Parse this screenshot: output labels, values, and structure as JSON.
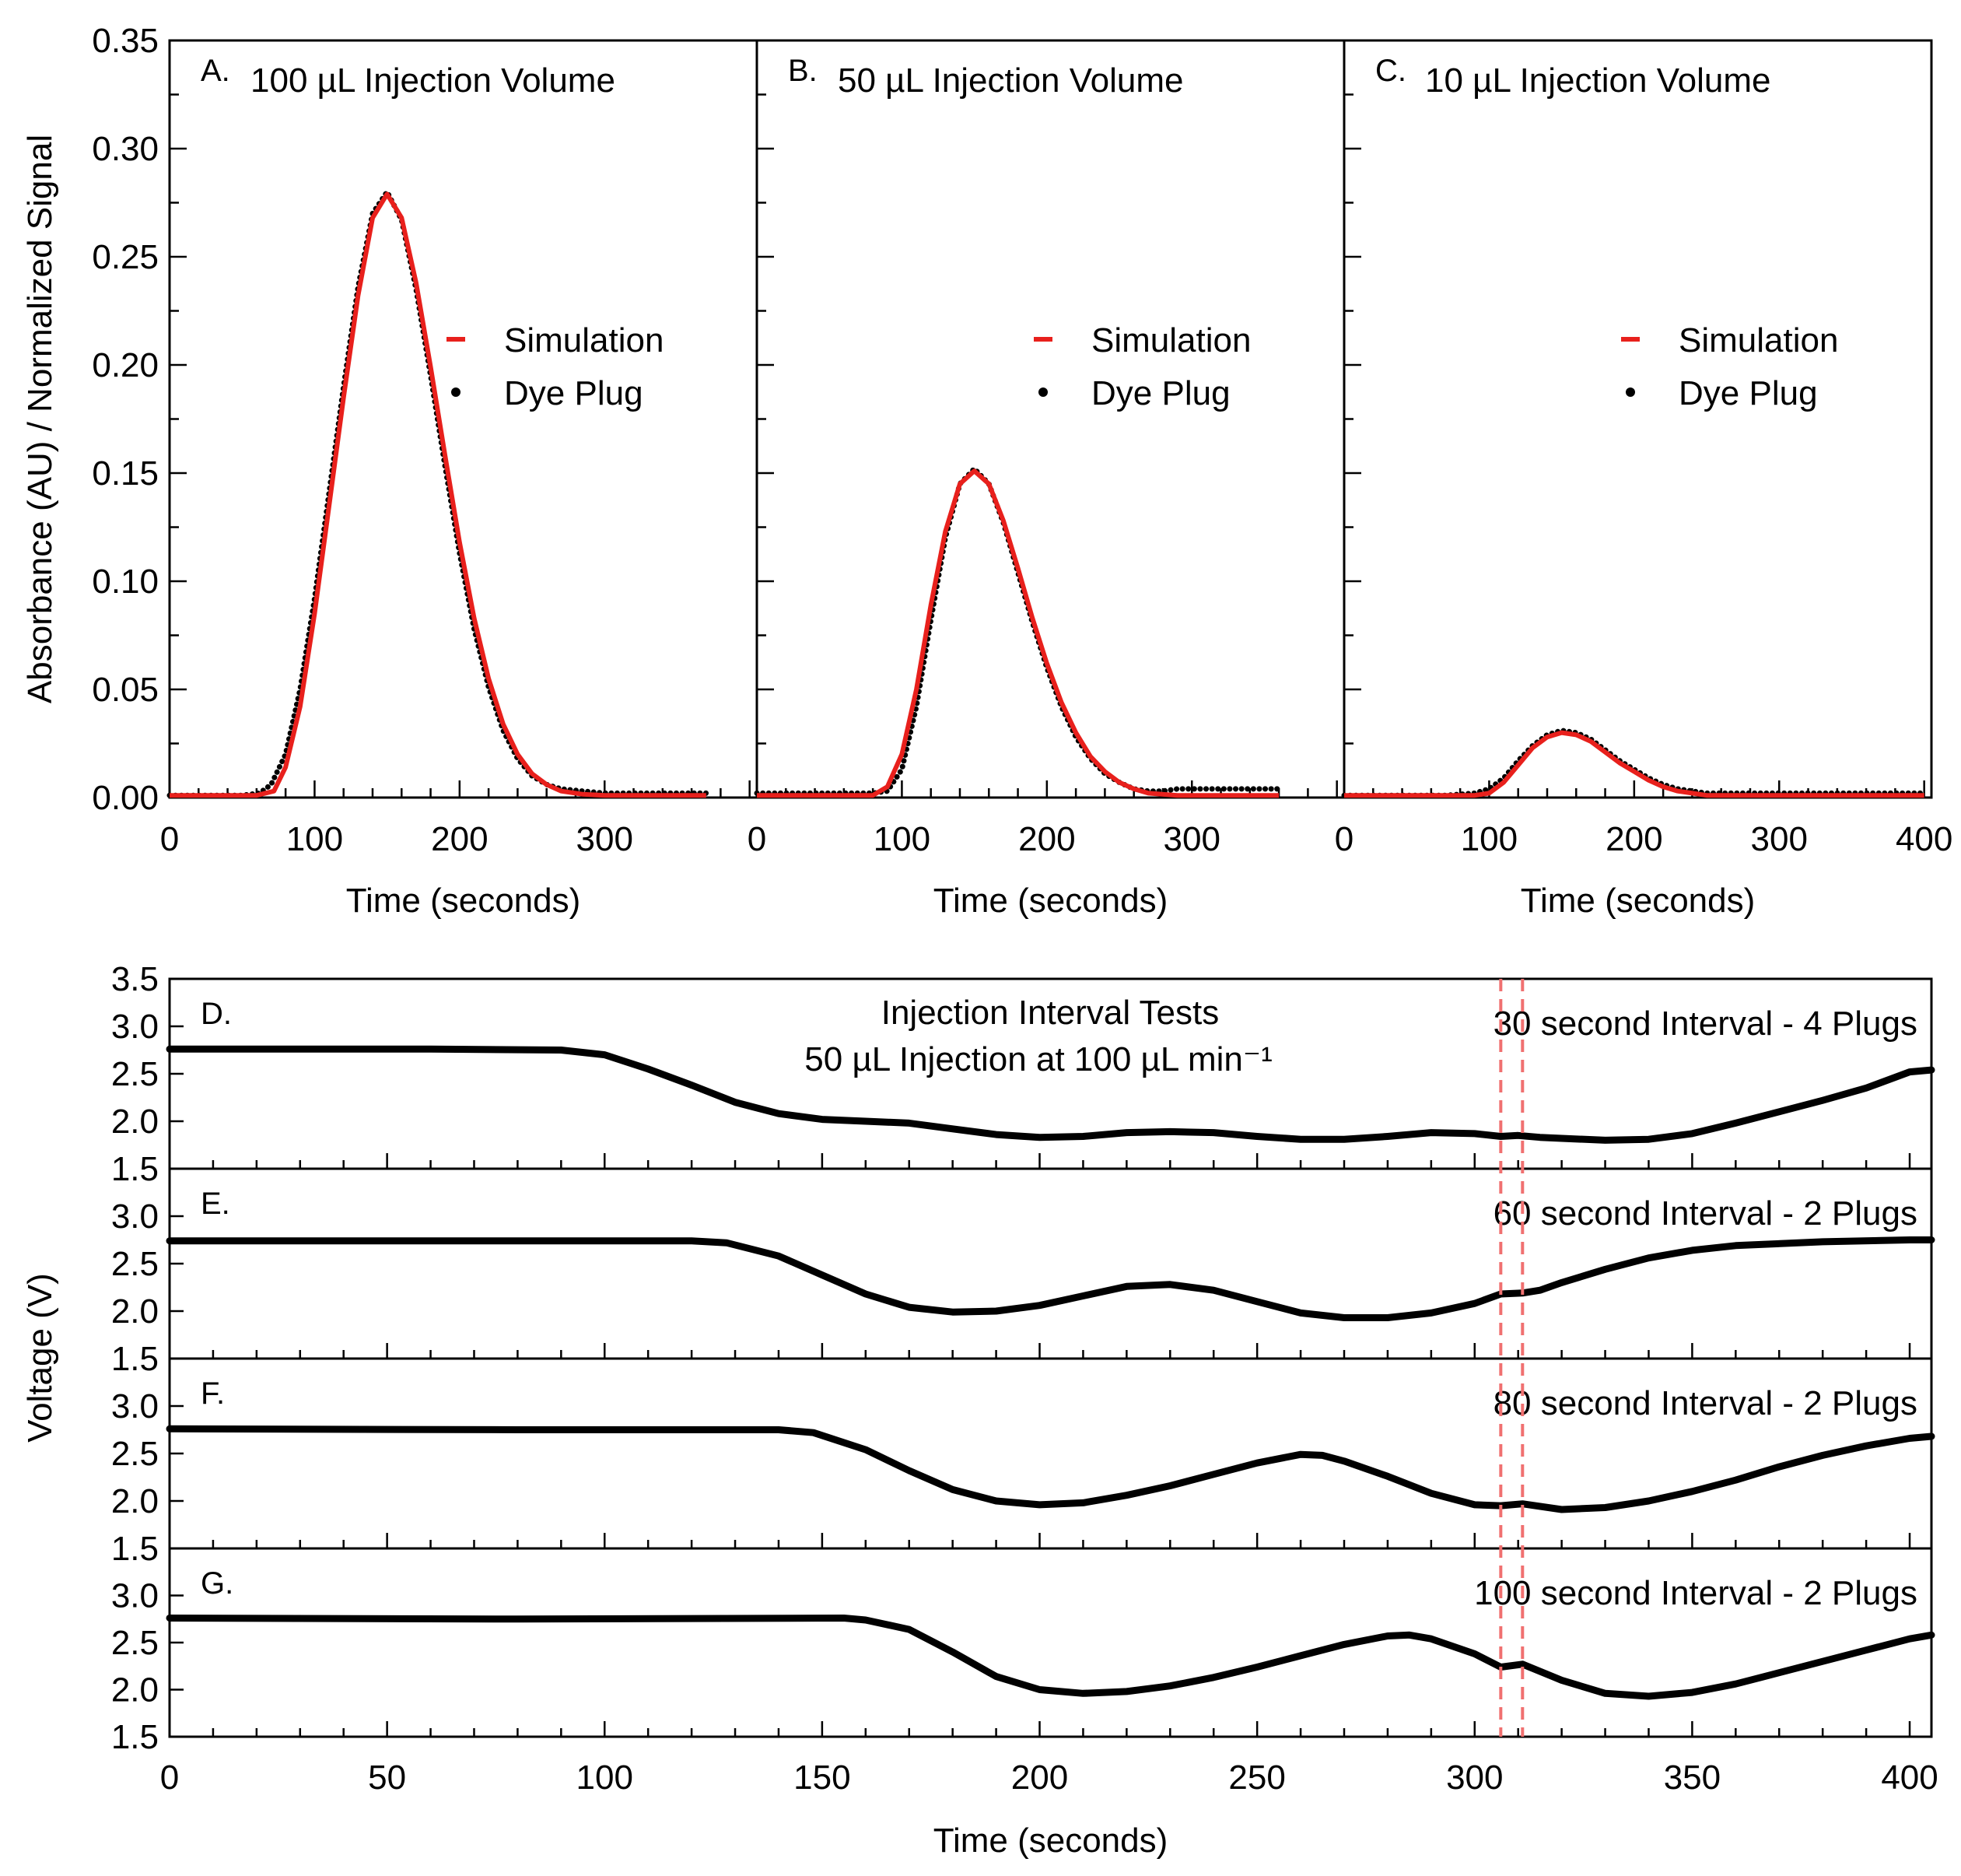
{
  "chart_data": [
    {
      "type": "line",
      "id": "A",
      "panel_letter": "A.",
      "title": "100 µL Injection Volume",
      "xlabel": "Time (seconds)",
      "ylabel": "Absorbance (AU) / Normalized Signal",
      "xlim": [
        0,
        405
      ],
      "ylim": [
        0,
        0.35
      ],
      "xticks": [
        "0",
        "100",
        "200",
        "300"
      ],
      "yticks": [
        "0.00",
        "0.05",
        "0.10",
        "0.15",
        "0.20",
        "0.25",
        "0.30",
        "0.35"
      ],
      "legend": {
        "position": "center-right",
        "entries": [
          "Simulation",
          "Dye Plug"
        ]
      },
      "series": [
        {
          "name": "Simulation",
          "color": "#e8201c",
          "x": [
            0,
            60,
            72,
            80,
            90,
            100,
            110,
            120,
            130,
            140,
            150,
            160,
            170,
            180,
            190,
            200,
            210,
            220,
            230,
            240,
            250,
            260,
            270,
            285,
            300,
            320,
            350,
            370
          ],
          "y": [
            0.001,
            0.001,
            0.003,
            0.014,
            0.042,
            0.085,
            0.135,
            0.185,
            0.232,
            0.268,
            0.279,
            0.268,
            0.238,
            0.199,
            0.158,
            0.118,
            0.083,
            0.055,
            0.034,
            0.02,
            0.011,
            0.006,
            0.003,
            0.0015,
            0.001,
            0.001,
            0.001,
            0.001
          ]
        },
        {
          "name": "Dye Plug",
          "color": "#000000",
          "x": [
            0,
            50,
            62,
            70,
            80,
            90,
            100,
            110,
            120,
            130,
            140,
            150,
            160,
            170,
            180,
            190,
            200,
            210,
            220,
            230,
            240,
            250,
            260,
            270,
            285,
            300,
            320,
            350,
            370
          ],
          "y": [
            0.001,
            0.001,
            0.002,
            0.006,
            0.02,
            0.05,
            0.092,
            0.141,
            0.19,
            0.236,
            0.27,
            0.28,
            0.267,
            0.235,
            0.195,
            0.153,
            0.113,
            0.078,
            0.051,
            0.031,
            0.018,
            0.01,
            0.006,
            0.004,
            0.003,
            0.002,
            0.002,
            0.002,
            0.002
          ]
        }
      ]
    },
    {
      "type": "line",
      "id": "B",
      "panel_letter": "B.",
      "title": "50 µL Injection Volume",
      "xlabel": "Time (seconds)",
      "xlim": [
        0,
        405
      ],
      "ylim": [
        0,
        0.35
      ],
      "xticks": [
        "0",
        "100",
        "200",
        "300"
      ],
      "legend": {
        "position": "center-right",
        "entries": [
          "Simulation",
          "Dye Plug"
        ]
      },
      "series": [
        {
          "name": "Simulation",
          "color": "#e8201c",
          "x": [
            0,
            80,
            90,
            100,
            110,
            120,
            130,
            140,
            150,
            160,
            170,
            180,
            190,
            200,
            210,
            220,
            230,
            240,
            250,
            260,
            270,
            290,
            320,
            360
          ],
          "y": [
            0.001,
            0.001,
            0.005,
            0.02,
            0.05,
            0.089,
            0.123,
            0.145,
            0.151,
            0.145,
            0.128,
            0.106,
            0.083,
            0.062,
            0.044,
            0.03,
            0.019,
            0.012,
            0.007,
            0.004,
            0.002,
            0.001,
            0.001,
            0.001
          ]
        },
        {
          "name": "Dye Plug",
          "color": "#000000",
          "x": [
            0,
            80,
            90,
            100,
            110,
            120,
            130,
            140,
            150,
            160,
            170,
            180,
            190,
            200,
            210,
            220,
            230,
            240,
            250,
            260,
            270,
            280,
            290,
            320,
            360
          ],
          "y": [
            0.002,
            0.002,
            0.003,
            0.013,
            0.042,
            0.082,
            0.12,
            0.145,
            0.152,
            0.145,
            0.127,
            0.104,
            0.081,
            0.06,
            0.042,
            0.028,
            0.018,
            0.011,
            0.007,
            0.004,
            0.003,
            0.003,
            0.004,
            0.004,
            0.004
          ]
        }
      ]
    },
    {
      "type": "line",
      "id": "C",
      "panel_letter": "C.",
      "title": "10 µL Injection Volume",
      "xlabel": "Time (seconds)",
      "xlim": [
        0,
        405
      ],
      "ylim": [
        0,
        0.35
      ],
      "xticks": [
        "0",
        "100",
        "200",
        "300",
        "400"
      ],
      "legend": {
        "position": "center-right",
        "entries": [
          "Simulation",
          "Dye Plug"
        ]
      },
      "series": [
        {
          "name": "Simulation",
          "color": "#e8201c",
          "x": [
            0,
            90,
            100,
            110,
            120,
            130,
            140,
            150,
            160,
            170,
            180,
            190,
            200,
            210,
            220,
            230,
            240,
            250,
            270,
            300,
            350,
            400
          ],
          "y": [
            0.001,
            0.001,
            0.002,
            0.007,
            0.015,
            0.023,
            0.028,
            0.03,
            0.029,
            0.026,
            0.021,
            0.016,
            0.012,
            0.008,
            0.005,
            0.003,
            0.002,
            0.001,
            0.001,
            0.001,
            0.001,
            0.001
          ]
        },
        {
          "name": "Dye Plug",
          "color": "#000000",
          "x": [
            0,
            70,
            90,
            100,
            110,
            120,
            130,
            140,
            150,
            160,
            170,
            180,
            190,
            200,
            210,
            220,
            230,
            240,
            250,
            270,
            300,
            350,
            400
          ],
          "y": [
            0.001,
            0.001,
            0.002,
            0.004,
            0.009,
            0.017,
            0.024,
            0.029,
            0.031,
            0.03,
            0.027,
            0.022,
            0.017,
            0.013,
            0.009,
            0.006,
            0.004,
            0.003,
            0.002,
            0.002,
            0.002,
            0.002,
            0.002
          ]
        }
      ]
    },
    {
      "type": "line",
      "id": "D",
      "panel_letter": "D.",
      "title": "Injection Interval Tests",
      "subtitle": "50 µL Injection at 100 µL min⁻¹",
      "annotation": "30 second Interval - 4 Plugs",
      "xlim": [
        0,
        405
      ],
      "ylim": [
        1.5,
        3.5
      ],
      "yticks": [
        "1.5",
        "2.0",
        "2.5",
        "3.0",
        "3.5"
      ],
      "reference_lines_x": [
        306,
        311
      ],
      "series": [
        {
          "name": "Voltage",
          "x": [
            0,
            30,
            60,
            90,
            100,
            110,
            120,
            130,
            140,
            150,
            160,
            170,
            180,
            190,
            200,
            210,
            220,
            230,
            240,
            250,
            260,
            270,
            280,
            290,
            300,
            306,
            310,
            315,
            320,
            330,
            340,
            350,
            360,
            370,
            380,
            390,
            400,
            405
          ],
          "y": [
            2.76,
            2.76,
            2.76,
            2.75,
            2.7,
            2.55,
            2.38,
            2.2,
            2.08,
            2.02,
            2.0,
            1.98,
            1.92,
            1.86,
            1.83,
            1.84,
            1.88,
            1.89,
            1.88,
            1.84,
            1.81,
            1.81,
            1.84,
            1.88,
            1.87,
            1.84,
            1.85,
            1.83,
            1.82,
            1.8,
            1.81,
            1.87,
            1.98,
            2.1,
            2.22,
            2.35,
            2.52,
            2.54
          ]
        }
      ]
    },
    {
      "type": "line",
      "id": "E",
      "panel_letter": "E.",
      "annotation": "60 second Interval - 2 Plugs",
      "xlim": [
        0,
        405
      ],
      "ylim": [
        1.5,
        3.5
      ],
      "yticks": [
        "1.5",
        "2.0",
        "2.5",
        "3.0"
      ],
      "reference_lines_x": [
        306,
        311
      ],
      "series": [
        {
          "name": "Voltage",
          "x": [
            0,
            60,
            120,
            128,
            140,
            150,
            160,
            170,
            180,
            190,
            200,
            210,
            220,
            230,
            240,
            250,
            260,
            270,
            280,
            290,
            300,
            306,
            311,
            315,
            320,
            330,
            340,
            350,
            360,
            380,
            400,
            405
          ],
          "y": [
            2.74,
            2.74,
            2.74,
            2.72,
            2.58,
            2.38,
            2.18,
            2.04,
            1.99,
            2.0,
            2.06,
            2.16,
            2.26,
            2.28,
            2.22,
            2.1,
            1.98,
            1.93,
            1.93,
            1.98,
            2.08,
            2.18,
            2.19,
            2.22,
            2.3,
            2.44,
            2.56,
            2.64,
            2.69,
            2.73,
            2.75,
            2.75
          ]
        }
      ]
    },
    {
      "type": "line",
      "id": "F",
      "panel_letter": "F.",
      "annotation": "80 second Interval - 2 Plugs",
      "xlim": [
        0,
        405
      ],
      "ylim": [
        1.5,
        3.5
      ],
      "yticks": [
        "1.5",
        "2.0",
        "2.5",
        "3.0"
      ],
      "reference_lines_x": [
        306,
        311
      ],
      "series": [
        {
          "name": "Voltage",
          "x": [
            0,
            80,
            140,
            148,
            160,
            170,
            180,
            190,
            200,
            210,
            220,
            230,
            240,
            250,
            260,
            265,
            270,
            280,
            290,
            300,
            306,
            311,
            320,
            330,
            340,
            350,
            360,
            370,
            380,
            390,
            400,
            405
          ],
          "y": [
            2.76,
            2.75,
            2.75,
            2.72,
            2.54,
            2.32,
            2.12,
            2.0,
            1.96,
            1.98,
            2.06,
            2.16,
            2.28,
            2.4,
            2.49,
            2.48,
            2.42,
            2.26,
            2.08,
            1.96,
            1.95,
            1.97,
            1.91,
            1.93,
            2.0,
            2.1,
            2.22,
            2.36,
            2.48,
            2.58,
            2.66,
            2.68
          ]
        }
      ]
    },
    {
      "type": "line",
      "id": "G",
      "panel_letter": "G.",
      "annotation": "100 second Interval - 2 Plugs",
      "xlabel": "Time (seconds)",
      "xlim": [
        0,
        405
      ],
      "ylim": [
        1.5,
        3.5
      ],
      "xticks": [
        "0",
        "50",
        "100",
        "150",
        "200",
        "250",
        "300",
        "350",
        "400"
      ],
      "yticks": [
        "1.5",
        "2.0",
        "2.5",
        "3.0"
      ],
      "reference_lines_x": [
        306,
        311
      ],
      "series": [
        {
          "name": "Voltage",
          "x": [
            0,
            80,
            155,
            160,
            170,
            180,
            190,
            200,
            210,
            220,
            230,
            240,
            250,
            260,
            270,
            280,
            285,
            290,
            300,
            306,
            311,
            320,
            330,
            340,
            350,
            360,
            370,
            380,
            390,
            400,
            405
          ],
          "y": [
            2.76,
            2.75,
            2.76,
            2.74,
            2.64,
            2.4,
            2.14,
            2.0,
            1.96,
            1.98,
            2.04,
            2.13,
            2.24,
            2.36,
            2.48,
            2.57,
            2.58,
            2.54,
            2.38,
            2.24,
            2.27,
            2.1,
            1.96,
            1.93,
            1.97,
            2.06,
            2.18,
            2.3,
            2.42,
            2.54,
            2.58
          ]
        }
      ]
    }
  ],
  "voltage_ylabel": "Voltage (V)"
}
